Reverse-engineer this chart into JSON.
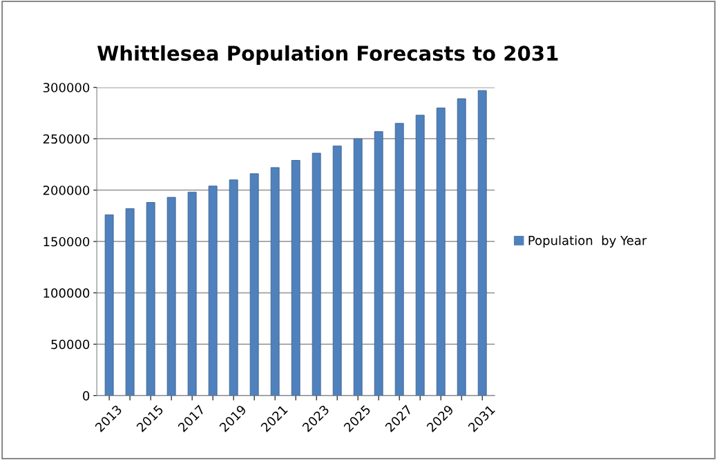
{
  "chart_data": {
    "type": "bar",
    "title": "Whittlesea Population Forecasts to 2031",
    "categories": [
      "2013",
      null,
      "2015",
      null,
      "2017",
      null,
      "2019",
      null,
      "2021",
      null,
      "2023",
      null,
      "2025",
      null,
      "2027",
      null,
      "2029",
      null,
      "2031"
    ],
    "series": [
      {
        "name": "Population  by Year",
        "color": "#4f81bd",
        "values": [
          176000,
          182000,
          188000,
          193000,
          198000,
          204000,
          210000,
          216000,
          222000,
          229000,
          236000,
          243000,
          250000,
          257000,
          265000,
          273000,
          280000,
          289000,
          297000
        ]
      }
    ],
    "ylim": [
      0,
      300000
    ],
    "yticks": [
      0,
      50000,
      100000,
      150000,
      200000,
      250000,
      300000
    ],
    "grid": "y",
    "legend": "right"
  }
}
